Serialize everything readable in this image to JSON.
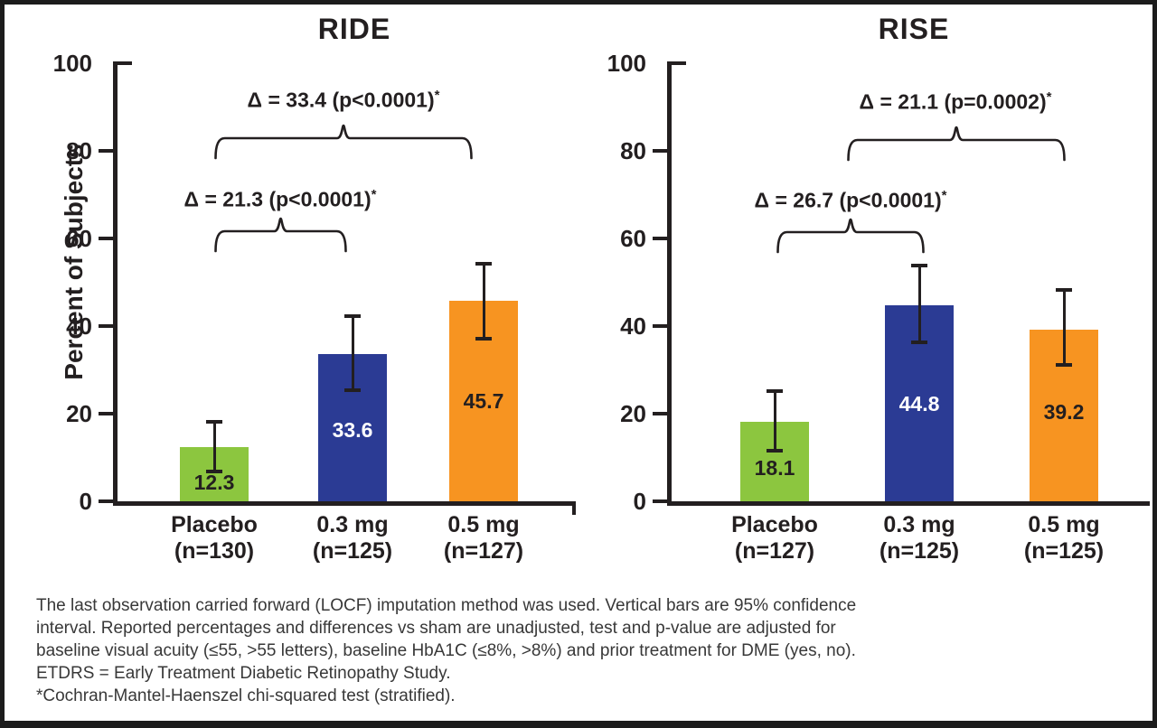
{
  "figure": {
    "footnote_lines": [
      "The last observation carried forward (LOCF) imputation method was used. Vertical bars are 95% confidence",
      "interval. Reported percentages and differences vs sham are unadjusted, test and p-value are adjusted for",
      "baseline visual acuity (≤55, >55 letters), baseline HbA1C (≤8%, >8%) and prior treatment for DME (yes, no).",
      "ETDRS = Early Treatment Diabetic Retinopathy Study.",
      "*Cochran-Mantel-Haenszel chi-squared test (stratified)."
    ],
    "colors": {
      "green": "#8CC63F",
      "blue": "#2B3B94",
      "orange": "#F79421",
      "axis": "#231F20"
    }
  },
  "chart_data": [
    {
      "type": "bar",
      "title": "RIDE",
      "ylabel": "Percent of Subjects",
      "ylim": [
        0,
        100
      ],
      "yticks": [
        0,
        20,
        40,
        60,
        80,
        100
      ],
      "categories": [
        [
          "Placebo",
          "(n=130)"
        ],
        [
          "0.3 mg",
          "(n=125)"
        ],
        [
          "0.5 mg",
          "(n=127)"
        ]
      ],
      "values": [
        12.3,
        33.6,
        45.7
      ],
      "ci_low": [
        6.9,
        25.4,
        37.1
      ],
      "ci_high": [
        18.1,
        42.2,
        54.3
      ],
      "bar_colors": [
        "#8CC63F",
        "#2B3B94",
        "#F79421"
      ],
      "value_label_colors": [
        "#231F20",
        "#FFFFFF",
        "#231F20"
      ],
      "annotations": [
        {
          "label": "Δ = 33.4 (p<0.0001)",
          "sup": "*",
          "compares": [
            "Placebo",
            "0.5 mg"
          ]
        },
        {
          "label": "Δ = 21.3 (p<0.0001)",
          "sup": "*",
          "compares": [
            "Placebo",
            "0.3 mg"
          ]
        }
      ]
    },
    {
      "type": "bar",
      "title": "RISE",
      "ylabel": "",
      "ylim": [
        0,
        100
      ],
      "yticks": [
        0,
        20,
        40,
        60,
        80,
        100
      ],
      "categories": [
        [
          "Placebo",
          "(n=127)"
        ],
        [
          "0.3 mg",
          "(n=125)"
        ],
        [
          "0.5 mg",
          "(n=125)"
        ]
      ],
      "values": [
        18.1,
        44.8,
        39.2
      ],
      "ci_low": [
        11.6,
        36.3,
        31.2
      ],
      "ci_high": [
        25.2,
        53.8,
        48.3
      ],
      "bar_colors": [
        "#8CC63F",
        "#2B3B94",
        "#F79421"
      ],
      "value_label_colors": [
        "#231F20",
        "#FFFFFF",
        "#231F20"
      ],
      "annotations": [
        {
          "label": "Δ = 21.1 (p=0.0002)",
          "sup": "*",
          "compares": [
            "Placebo",
            "0.5 mg"
          ]
        },
        {
          "label": "Δ = 26.7 (p<0.0001)",
          "sup": "*",
          "compares": [
            "Placebo",
            "0.3 mg"
          ]
        }
      ]
    }
  ]
}
